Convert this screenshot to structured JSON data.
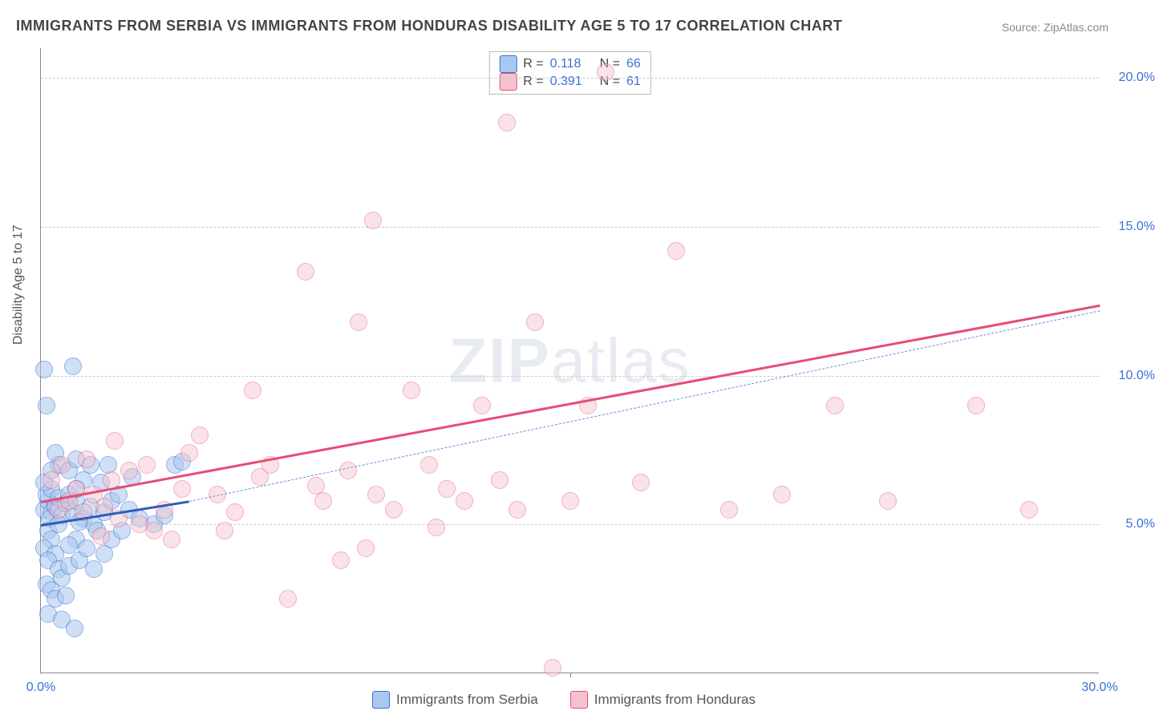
{
  "title": "IMMIGRANTS FROM SERBIA VS IMMIGRANTS FROM HONDURAS DISABILITY AGE 5 TO 17 CORRELATION CHART",
  "source_label": "Source: ",
  "source_site": "ZipAtlas.com",
  "ylabel": "Disability Age 5 to 17",
  "watermark_bold": "ZIP",
  "watermark_rest": "atlas",
  "chart": {
    "type": "scatter",
    "xlim": [
      0,
      30
    ],
    "ylim": [
      0,
      21
    ],
    "x_ticks": [
      0,
      30
    ],
    "x_tick_labels": [
      "0.0%",
      "30.0%"
    ],
    "x_minor_tick": 15,
    "y_ticks": [
      5,
      10,
      15,
      20
    ],
    "y_tick_labels": [
      "5.0%",
      "10.0%",
      "15.0%",
      "20.0%"
    ],
    "background_color": "#ffffff",
    "grid_color": "#cccccc",
    "axis_color": "#888888",
    "tick_label_color": "#3b6fd6",
    "marker_radius": 11,
    "marker_stroke_width": 1.5,
    "series": [
      {
        "name": "Immigrants from Serbia",
        "fill": "#a9c8ef",
        "stroke": "#3b6fd6",
        "fill_opacity": 0.55,
        "R": "0.118",
        "N": "66",
        "trend": {
          "x1": 0,
          "y1": 5.0,
          "x2": 4.2,
          "y2": 5.8,
          "width": 3,
          "color": "#2f5db8",
          "dash": false
        },
        "trend_ext": {
          "x1": 4.2,
          "y1": 5.8,
          "x2": 30,
          "y2": 12.2,
          "width": 1.2,
          "color": "#6b8fd6",
          "dash": true
        },
        "points": [
          [
            0.1,
            5.5
          ],
          [
            0.2,
            5.8
          ],
          [
            0.3,
            5.4
          ],
          [
            0.15,
            6.0
          ],
          [
            0.25,
            5.2
          ],
          [
            0.4,
            5.6
          ],
          [
            0.3,
            6.2
          ],
          [
            0.1,
            6.4
          ],
          [
            0.5,
            5.9
          ],
          [
            0.6,
            5.3
          ],
          [
            0.2,
            4.8
          ],
          [
            0.7,
            5.7
          ],
          [
            0.8,
            6.0
          ],
          [
            0.3,
            4.5
          ],
          [
            0.9,
            5.4
          ],
          [
            0.1,
            4.2
          ],
          [
            0.4,
            4.0
          ],
          [
            1.0,
            5.8
          ],
          [
            0.2,
            3.8
          ],
          [
            0.5,
            3.5
          ],
          [
            0.6,
            3.2
          ],
          [
            0.15,
            3.0
          ],
          [
            0.8,
            3.6
          ],
          [
            1.2,
            5.2
          ],
          [
            0.3,
            2.8
          ],
          [
            1.4,
            5.6
          ],
          [
            0.4,
            2.5
          ],
          [
            1.0,
            4.5
          ],
          [
            1.5,
            5.0
          ],
          [
            0.2,
            2.0
          ],
          [
            0.7,
            2.6
          ],
          [
            1.8,
            5.4
          ],
          [
            1.1,
            3.8
          ],
          [
            0.5,
            7.0
          ],
          [
            1.3,
            4.2
          ],
          [
            0.8,
            6.8
          ],
          [
            2.0,
            5.8
          ],
          [
            1.6,
            4.8
          ],
          [
            0.1,
            10.2
          ],
          [
            0.9,
            10.3
          ],
          [
            0.15,
            9.0
          ],
          [
            1.0,
            7.2
          ],
          [
            1.2,
            6.5
          ],
          [
            2.2,
            6.0
          ],
          [
            1.8,
            4.0
          ],
          [
            0.6,
            1.8
          ],
          [
            1.5,
            3.5
          ],
          [
            2.5,
            5.5
          ],
          [
            1.4,
            7.0
          ],
          [
            0.3,
            6.8
          ],
          [
            2.0,
            4.5
          ],
          [
            2.8,
            5.2
          ],
          [
            1.0,
            6.2
          ],
          [
            0.4,
            7.4
          ],
          [
            1.7,
            6.4
          ],
          [
            2.3,
            4.8
          ],
          [
            0.8,
            4.3
          ],
          [
            1.9,
            7.0
          ],
          [
            0.5,
            5.0
          ],
          [
            1.1,
            5.1
          ],
          [
            3.2,
            5.0
          ],
          [
            3.8,
            7.0
          ],
          [
            4.0,
            7.1
          ],
          [
            3.5,
            5.3
          ],
          [
            2.6,
            6.6
          ],
          [
            0.95,
            1.5
          ]
        ]
      },
      {
        "name": "Immigrants from Honduras",
        "fill": "#f4c2cd",
        "stroke": "#e64d74",
        "fill_opacity": 0.45,
        "R": "0.391",
        "N": "61",
        "trend": {
          "x1": 0,
          "y1": 5.8,
          "x2": 30,
          "y2": 12.4,
          "width": 3,
          "color": "#e64d74",
          "dash": false
        },
        "points": [
          [
            0.5,
            5.5
          ],
          [
            0.8,
            5.8
          ],
          [
            1.0,
            6.2
          ],
          [
            1.2,
            5.4
          ],
          [
            1.5,
            6.0
          ],
          [
            1.8,
            5.6
          ],
          [
            2.0,
            6.5
          ],
          [
            2.2,
            5.2
          ],
          [
            2.5,
            6.8
          ],
          [
            2.8,
            5.0
          ],
          [
            3.0,
            7.0
          ],
          [
            3.2,
            4.8
          ],
          [
            3.5,
            5.5
          ],
          [
            4.0,
            6.2
          ],
          [
            4.5,
            8.0
          ],
          [
            5.0,
            6.0
          ],
          [
            5.5,
            5.4
          ],
          [
            6.0,
            9.5
          ],
          [
            6.5,
            7.0
          ],
          [
            7.0,
            2.5
          ],
          [
            7.5,
            13.5
          ],
          [
            8.0,
            5.8
          ],
          [
            8.5,
            3.8
          ],
          [
            9.0,
            11.8
          ],
          [
            9.2,
            4.2
          ],
          [
            9.5,
            6.0
          ],
          [
            9.4,
            15.2
          ],
          [
            10.0,
            5.5
          ],
          [
            10.5,
            9.5
          ],
          [
            11.0,
            7.0
          ],
          [
            11.5,
            6.2
          ],
          [
            12.0,
            5.8
          ],
          [
            12.5,
            9.0
          ],
          [
            13.0,
            6.5
          ],
          [
            13.2,
            18.5
          ],
          [
            13.5,
            5.5
          ],
          [
            14.0,
            11.8
          ],
          [
            14.5,
            0.2
          ],
          [
            15.0,
            5.8
          ],
          [
            15.5,
            9.0
          ],
          [
            16.0,
            20.2
          ],
          [
            17.0,
            6.4
          ],
          [
            18.0,
            14.2
          ],
          [
            19.5,
            5.5
          ],
          [
            21.0,
            6.0
          ],
          [
            22.5,
            9.0
          ],
          [
            24.0,
            5.8
          ],
          [
            26.5,
            9.0
          ],
          [
            28.0,
            5.5
          ],
          [
            6.2,
            6.6
          ],
          [
            4.2,
            7.4
          ],
          [
            3.7,
            4.5
          ],
          [
            1.3,
            7.2
          ],
          [
            2.1,
            7.8
          ],
          [
            0.3,
            6.5
          ],
          [
            0.6,
            7.0
          ],
          [
            1.7,
            4.6
          ],
          [
            5.2,
            4.8
          ],
          [
            7.8,
            6.3
          ],
          [
            11.2,
            4.9
          ],
          [
            8.7,
            6.8
          ]
        ]
      }
    ]
  },
  "legend_top": {
    "r_label": "R  =",
    "n_label": "N  ="
  }
}
